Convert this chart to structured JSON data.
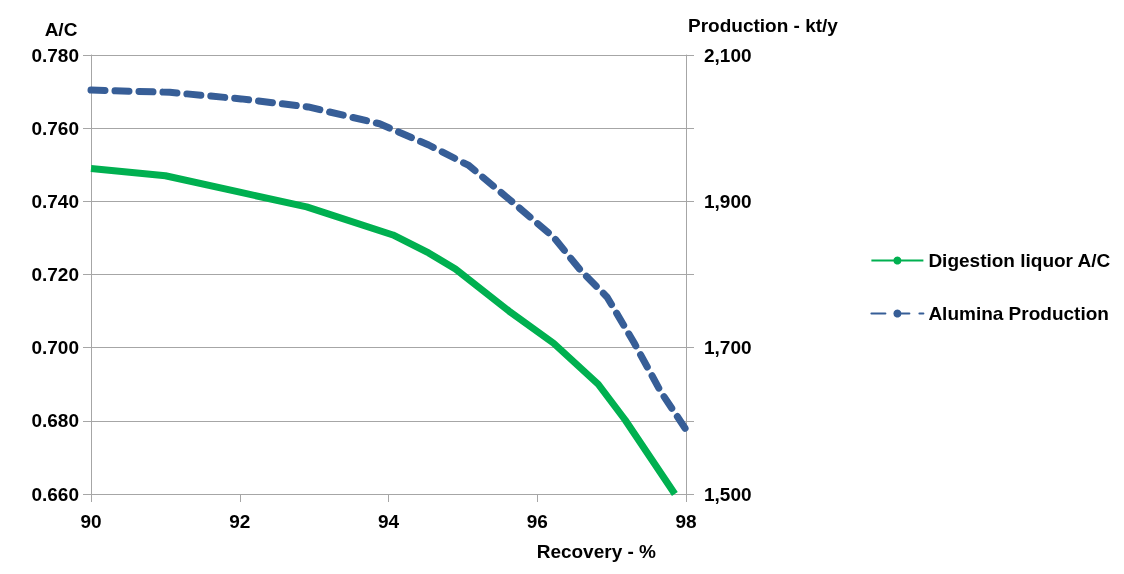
{
  "chart_data": {
    "type": "line",
    "xlabel": "Recovery - %",
    "ylabel": "A/C",
    "y2label": "Production - kt/y",
    "xlim": [
      90,
      98
    ],
    "xticks": [
      90,
      92,
      94,
      96,
      98
    ],
    "ylim": [
      0.66,
      0.78
    ],
    "yticks": [
      {
        "value": 0.66,
        "label": "0.660"
      },
      {
        "value": 0.68,
        "label": "0.680"
      },
      {
        "value": 0.7,
        "label": "0.700"
      },
      {
        "value": 0.72,
        "label": "0.720"
      },
      {
        "value": 0.74,
        "label": "0.740"
      },
      {
        "value": 0.76,
        "label": "0.760"
      },
      {
        "value": 0.78,
        "label": "0.780"
      }
    ],
    "y2lim": [
      1500,
      2100
    ],
    "y2ticks": [
      {
        "value": 1500,
        "label": "1,500"
      },
      {
        "value": 1600,
        "label": null
      },
      {
        "value": 1700,
        "label": "1,700"
      },
      {
        "value": 1800,
        "label": null
      },
      {
        "value": 1900,
        "label": "1,900"
      },
      {
        "value": 2000,
        "label": null
      },
      {
        "value": 2100,
        "label": "2,100"
      }
    ],
    "grid": "y",
    "legend": "right",
    "marker": "none",
    "series": [
      {
        "name": "Digestion liquor A/C",
        "color": "#00b050",
        "line_style": "solid",
        "x": [
          90,
          91,
          92,
          92.9,
          94.06,
          94.54,
          94.9,
          95.62,
          96.22,
          96.82,
          97.18,
          97.85
        ],
        "values": [
          0.749,
          0.747,
          0.7425,
          0.7385,
          0.7308,
          0.7259,
          0.7215,
          0.71,
          0.7012,
          0.69,
          0.6803,
          0.66
        ]
      },
      {
        "name": "Alumina Production",
        "color": "#375e97",
        "line_style": "dashed",
        "axis": "y2",
        "x": [
          90,
          91.06,
          92.02,
          92.92,
          93.88,
          94.54,
          95.08,
          95.62,
          96.22,
          96.58,
          96.94,
          97.3,
          97.66,
          98
        ],
        "values": [
          2052,
          2049,
          2040,
          2029,
          2006,
          1977,
          1949,
          1903,
          1851,
          1806,
          1769,
          1707,
          1640,
          1588
        ]
      }
    ]
  }
}
